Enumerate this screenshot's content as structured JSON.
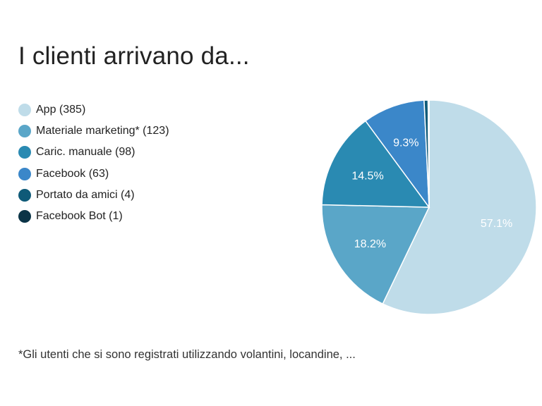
{
  "chart_data": {
    "type": "pie",
    "title": "I clienti arrivano da...",
    "categories": [
      "App (385)",
      "Materiale marketing* (123)",
      "Caric. manuale (98)",
      "Facebook (63)",
      "Portato da amici (4)",
      "Facebook Bot (1)"
    ],
    "values": [
      385,
      123,
      98,
      63,
      4,
      1
    ],
    "slice_labels": [
      "57.1%",
      "18.2%",
      "14.5%",
      "9.3%",
      "",
      ""
    ],
    "colors": [
      "#bfdce9",
      "#5aa6c8",
      "#2a8ab2",
      "#3b87c9",
      "#0f5a78",
      "#0b3447"
    ],
    "start": "top, clockwise",
    "legend_position": "left"
  },
  "footnote": "*Gli utenti che si sono registrati utilizzando volantini, locandine, ..."
}
